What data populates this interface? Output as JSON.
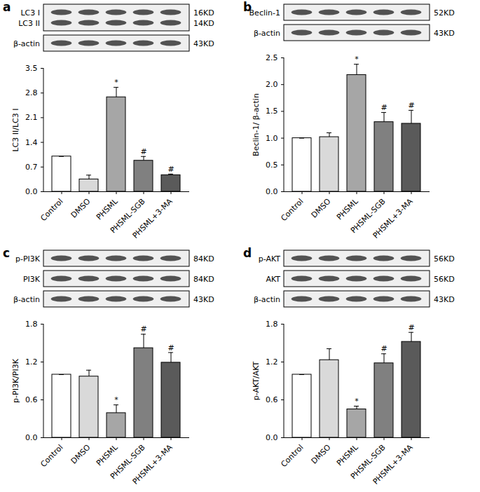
{
  "chart_data": [
    {
      "type": "bar",
      "panel": "a",
      "blots": [
        {
          "labels": [
            "LC3 I",
            "LC3 II"
          ],
          "sizes": [
            "16KD",
            "14KD"
          ]
        },
        {
          "labels": [
            "β-actin"
          ],
          "sizes": [
            "43KD"
          ]
        }
      ],
      "y_label": "LC3 II/LC3 I",
      "categories": [
        "Control",
        "DMSO",
        "PHSML",
        "PHSML-SGB",
        "PHSML+3-MA"
      ],
      "values": [
        1.0,
        0.35,
        2.68,
        0.88,
        0.47
      ],
      "errors": [
        0,
        0.12,
        0.28,
        0.12,
        0.03
      ],
      "annotations": [
        null,
        null,
        "*",
        "#",
        "#"
      ],
      "colors": [
        "#ffffff",
        "#d9d9d9",
        "#a6a6a6",
        "#808080",
        "#5a5a5a"
      ],
      "ylim": [
        0,
        3.5
      ],
      "yticks": [
        {
          "value": 0,
          "label": "0.0"
        },
        0.7,
        1.4,
        2.1,
        2.8,
        3.5
      ]
    },
    {
      "type": "bar",
      "panel": "b",
      "blots": [
        {
          "labels": [
            "Beclin-1"
          ],
          "sizes": [
            "52KD"
          ]
        },
        {
          "labels": [
            "β-actin"
          ],
          "sizes": [
            "43KD"
          ]
        }
      ],
      "y_label": "Beclin-1/ β-actin",
      "categories": [
        "Control",
        "DMSO",
        "PHSML",
        "PHSML-SGB",
        "PHSML+3-MA"
      ],
      "values": [
        1.0,
        1.02,
        2.18,
        1.3,
        1.27
      ],
      "errors": [
        0,
        0.08,
        0.2,
        0.18,
        0.25
      ],
      "annotations": [
        null,
        null,
        "*",
        "#",
        "#"
      ],
      "colors": [
        "#ffffff",
        "#d9d9d9",
        "#a6a6a6",
        "#808080",
        "#5a5a5a"
      ],
      "ylim": [
        0,
        2.5
      ],
      "yticks": [
        {
          "value": 0,
          "label": "0.0"
        },
        0.5,
        {
          "value": 1,
          "label": "1.0"
        },
        1.5,
        {
          "value": 2,
          "label": "2.0"
        },
        2.5
      ]
    },
    {
      "type": "bar",
      "panel": "c",
      "blots": [
        {
          "labels": [
            "p-PI3K"
          ],
          "sizes": [
            "84KD"
          ]
        },
        {
          "labels": [
            "PI3K"
          ],
          "sizes": [
            "84KD"
          ]
        },
        {
          "labels": [
            "β-actin"
          ],
          "sizes": [
            "43KD"
          ]
        }
      ],
      "y_label": "p-PI3K/PI3K",
      "categories": [
        "Control",
        "DMSO",
        "PHSML",
        "PHSML-SGB",
        "PHSML+3-MA"
      ],
      "values": [
        1.0,
        0.97,
        0.39,
        1.42,
        1.19
      ],
      "errors": [
        0,
        0.1,
        0.13,
        0.22,
        0.16
      ],
      "annotations": [
        null,
        null,
        "*",
        "#",
        "#"
      ],
      "colors": [
        "#ffffff",
        "#d9d9d9",
        "#a6a6a6",
        "#808080",
        "#5a5a5a"
      ],
      "ylim": [
        0,
        1.8
      ],
      "yticks": [
        {
          "value": 0,
          "label": "0.0"
        },
        0.6,
        1.2,
        1.8
      ]
    },
    {
      "type": "bar",
      "panel": "d",
      "blots": [
        {
          "labels": [
            "p-AKT"
          ],
          "sizes": [
            "56KD"
          ]
        },
        {
          "labels": [
            "AKT"
          ],
          "sizes": [
            "56KD"
          ]
        },
        {
          "labels": [
            "β-actin"
          ],
          "sizes": [
            "43KD"
          ]
        }
      ],
      "y_label": "p-AKT/AKT",
      "categories": [
        "Control",
        "DMSO",
        "PHSML",
        "PHSML-SGB",
        "PHSML+3-MA"
      ],
      "values": [
        1.0,
        1.23,
        0.45,
        1.18,
        1.52
      ],
      "errors": [
        0,
        0.18,
        0.05,
        0.15,
        0.15
      ],
      "annotations": [
        null,
        null,
        "*",
        "#",
        "#"
      ],
      "colors": [
        "#ffffff",
        "#d9d9d9",
        "#a6a6a6",
        "#808080",
        "#5a5a5a"
      ],
      "ylim": [
        0,
        1.8
      ],
      "yticks": [
        {
          "value": 0,
          "label": "0.0"
        },
        0.6,
        1.2,
        1.8
      ]
    }
  ]
}
